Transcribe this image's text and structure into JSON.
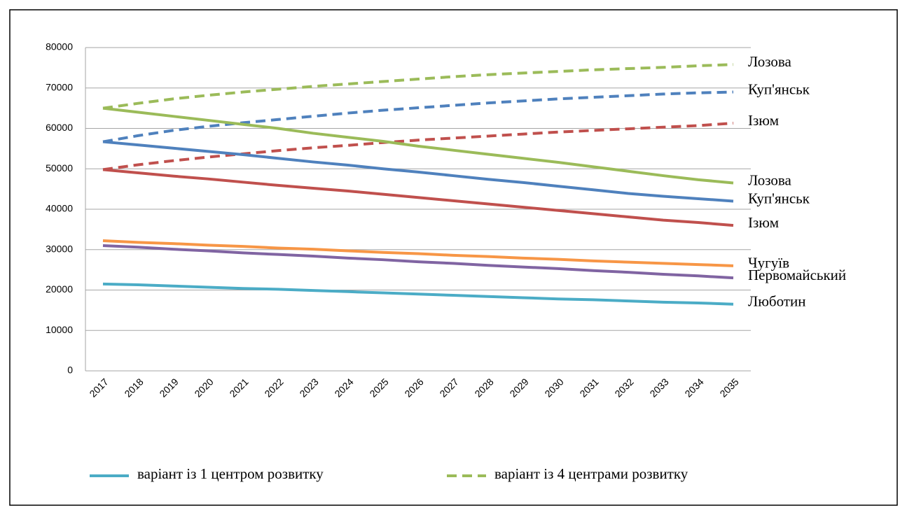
{
  "chart_data": {
    "type": "line",
    "categories": [
      "2017",
      "2018",
      "2019",
      "2020",
      "2021",
      "2022",
      "2023",
      "2024",
      "2025",
      "2026",
      "2027",
      "2028",
      "2029",
      "2030",
      "2031",
      "2032",
      "2033",
      "2034",
      "2035"
    ],
    "ylim": [
      0,
      80000
    ],
    "yticks": [
      0,
      10000,
      20000,
      30000,
      40000,
      50000,
      60000,
      70000,
      80000
    ],
    "grid": true,
    "legend": [
      {
        "label": "варіант із 1 центром розвитку",
        "color": "#4bacc6",
        "dashed": false
      },
      {
        "label": "варіант із 4 центрами розвитку",
        "color": "#9bbb59",
        "dashed": true
      }
    ],
    "series": [
      {
        "name": "Лозова",
        "color": "#9bbb59",
        "dashed": true,
        "values": [
          65000,
          66200,
          67300,
          68200,
          69000,
          69700,
          70400,
          71000,
          71600,
          72200,
          72800,
          73300,
          73700,
          74100,
          74500,
          74800,
          75100,
          75500,
          75800
        ]
      },
      {
        "name": "Куп'янськ",
        "color": "#4f81bd",
        "dashed": true,
        "values": [
          56700,
          58200,
          59500,
          60500,
          61400,
          62200,
          63000,
          63800,
          64500,
          65100,
          65700,
          66300,
          66800,
          67300,
          67700,
          68100,
          68500,
          68800,
          69000
        ]
      },
      {
        "name": "Ізюм",
        "color": "#c0504d",
        "dashed": true,
        "values": [
          49800,
          51000,
          52000,
          52900,
          53700,
          54500,
          55200,
          55800,
          56500,
          57100,
          57600,
          58100,
          58600,
          59100,
          59500,
          59900,
          60300,
          60700,
          61300
        ]
      },
      {
        "name": "Лозова",
        "color": "#9bbb59",
        "dashed": false,
        "values": [
          65000,
          64000,
          63000,
          62000,
          61000,
          60000,
          58800,
          57800,
          56800,
          55600,
          54600,
          53600,
          52600,
          51600,
          50500,
          49400,
          48300,
          47300,
          46500
        ]
      },
      {
        "name": "Куп'янськ",
        "color": "#4f81bd",
        "dashed": false,
        "values": [
          56700,
          55900,
          55100,
          54300,
          53500,
          52600,
          51700,
          50900,
          50000,
          49200,
          48300,
          47400,
          46600,
          45700,
          44800,
          43900,
          43200,
          42600,
          42000
        ]
      },
      {
        "name": "Ізюм",
        "color": "#c0504d",
        "dashed": false,
        "values": [
          49800,
          49000,
          48200,
          47500,
          46700,
          45900,
          45200,
          44500,
          43700,
          42900,
          42100,
          41300,
          40500,
          39700,
          38900,
          38100,
          37300,
          36700,
          36000
        ]
      },
      {
        "name": "Чугуїв",
        "color": "#f79646",
        "dashed": false,
        "values": [
          32200,
          31800,
          31500,
          31100,
          30800,
          30400,
          30100,
          29700,
          29300,
          29000,
          28600,
          28300,
          27900,
          27600,
          27200,
          26900,
          26600,
          26300,
          26000
        ]
      },
      {
        "name": "Первомайський",
        "color": "#8064a2",
        "dashed": false,
        "values": [
          31000,
          30600,
          30100,
          29700,
          29200,
          28800,
          28400,
          27900,
          27500,
          27000,
          26600,
          26100,
          25700,
          25300,
          24800,
          24400,
          23900,
          23500,
          23000
        ]
      },
      {
        "name": "Люботин",
        "color": "#4bacc6",
        "dashed": false,
        "values": [
          21500,
          21300,
          21000,
          20700,
          20400,
          20200,
          19900,
          19600,
          19300,
          19000,
          18700,
          18400,
          18100,
          17800,
          17600,
          17300,
          17000,
          16800,
          16500
        ]
      }
    ]
  }
}
